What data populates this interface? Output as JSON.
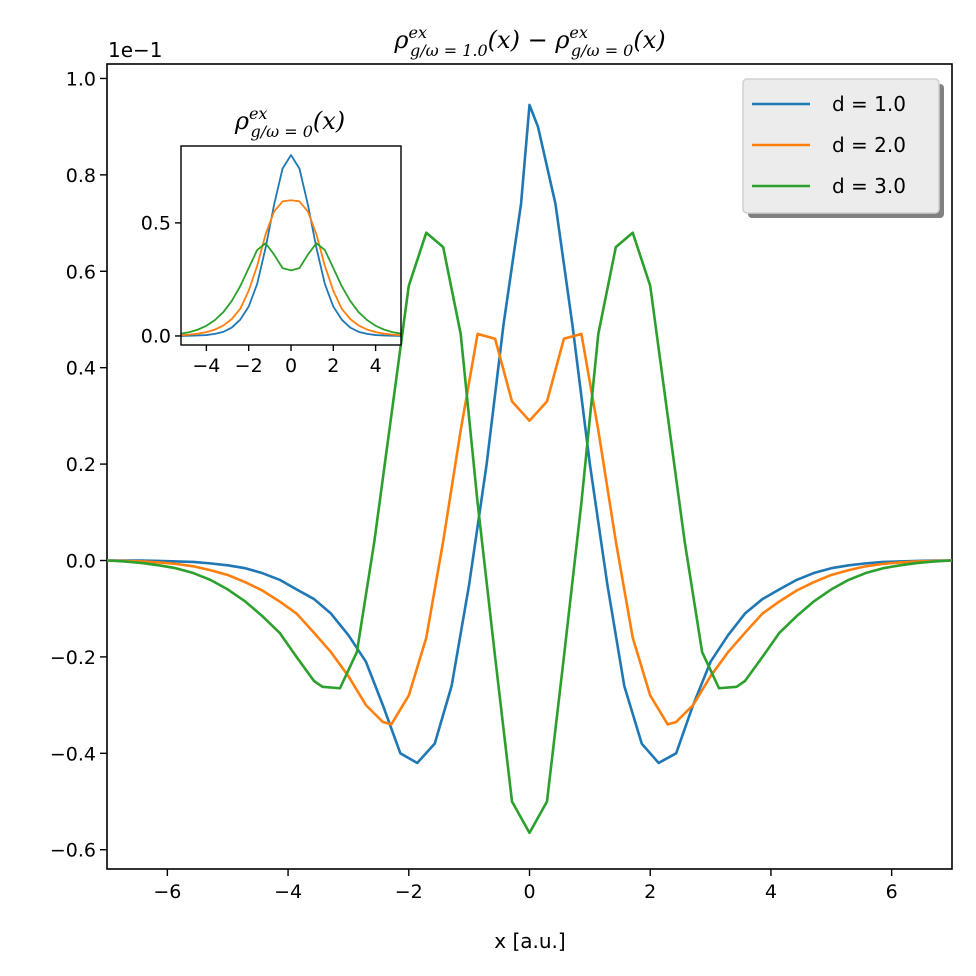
{
  "figure": {
    "title_main": "ρ",
    "title_sup": "ex",
    "title_sub_1": "g/ω = 1.0",
    "title_sub_2": "g/ω = 0",
    "title_arg": "(x)",
    "title_minus": " − ",
    "offset_text": "1e−1",
    "xlabel": "x [a.u.]",
    "inset_title_main": "ρ",
    "inset_title_sup": "ex",
    "inset_title_sub": "g/ω = 0",
    "inset_title_arg": "(x)"
  },
  "chart_data": [
    {
      "type": "line",
      "role": "main",
      "title": "ρ^ex_{g/ω=1.0}(x) − ρ^ex_{g/ω=0}(x)",
      "xlabel": "x [a.u.]",
      "ylabel": "",
      "y_scale_factor": "1e-1",
      "xlim": [
        -7,
        7
      ],
      "ylim": [
        -0.64,
        1.03
      ],
      "xticks": [
        -6,
        -4,
        -2,
        0,
        2,
        4,
        6
      ],
      "xtick_labels": [
        "−6",
        "−4",
        "−2",
        "0",
        "2",
        "4",
        "6"
      ],
      "yticks": [
        -0.6,
        -0.4,
        -0.2,
        0.0,
        0.2,
        0.4,
        0.6,
        0.8,
        1.0
      ],
      "ytick_labels": [
        "−0.6",
        "−0.4",
        "−0.2",
        "0.0",
        "0.2",
        "0.4",
        "0.6",
        "0.8",
        "1.0"
      ],
      "grid": false,
      "legend_position": "top-right",
      "series": [
        {
          "name": "d = 1.0",
          "color": "#1f77b4",
          "x": [
            -7.0,
            -6.71,
            -6.43,
            -6.14,
            -5.86,
            -5.57,
            -5.29,
            -5.0,
            -4.71,
            -4.43,
            -4.14,
            -3.86,
            -3.57,
            -3.29,
            -3.0,
            -2.71,
            -2.43,
            -2.14,
            -1.86,
            -1.57,
            -1.29,
            -1.0,
            -0.71,
            -0.43,
            -0.14,
            0.0,
            0.14,
            0.43,
            0.71,
            1.0,
            1.29,
            1.57,
            1.86,
            2.14,
            2.43,
            2.71,
            3.0,
            3.29,
            3.57,
            3.86,
            4.14,
            4.43,
            4.71,
            5.0,
            5.29,
            5.57,
            5.86,
            6.14,
            6.43,
            6.71,
            7.0
          ],
          "y": [
            0.0,
            0.0,
            0.0,
            -0.001,
            -0.002,
            -0.003,
            -0.006,
            -0.01,
            -0.016,
            -0.026,
            -0.04,
            -0.06,
            -0.08,
            -0.11,
            -0.155,
            -0.21,
            -0.3,
            -0.4,
            -0.42,
            -0.38,
            -0.26,
            -0.05,
            0.2,
            0.49,
            0.74,
            0.945,
            0.9,
            0.74,
            0.49,
            0.2,
            -0.05,
            -0.26,
            -0.38,
            -0.42,
            -0.4,
            -0.3,
            -0.21,
            -0.155,
            -0.11,
            -0.08,
            -0.06,
            -0.04,
            -0.026,
            -0.016,
            -0.01,
            -0.006,
            -0.003,
            -0.002,
            -0.001,
            0.0,
            0.0
          ]
        },
        {
          "name": "d = 2.0",
          "color": "#ff7f0e",
          "x": [
            -7.0,
            -6.71,
            -6.43,
            -6.14,
            -5.86,
            -5.57,
            -5.29,
            -5.0,
            -4.71,
            -4.43,
            -4.14,
            -3.86,
            -3.57,
            -3.29,
            -3.0,
            -2.71,
            -2.43,
            -2.29,
            -2.0,
            -1.71,
            -1.43,
            -1.14,
            -0.86,
            -0.57,
            -0.29,
            0.0,
            0.29,
            0.57,
            0.86,
            1.14,
            1.43,
            1.71,
            2.0,
            2.29,
            2.43,
            2.71,
            3.0,
            3.29,
            3.57,
            3.86,
            4.14,
            4.43,
            4.71,
            5.0,
            5.29,
            5.57,
            5.86,
            6.14,
            6.43,
            6.71,
            7.0
          ],
          "y": [
            0.0,
            -0.001,
            -0.002,
            -0.004,
            -0.007,
            -0.012,
            -0.02,
            -0.03,
            -0.045,
            -0.062,
            -0.085,
            -0.11,
            -0.15,
            -0.19,
            -0.24,
            -0.3,
            -0.335,
            -0.34,
            -0.28,
            -0.16,
            0.04,
            0.27,
            0.47,
            0.46,
            0.33,
            0.29,
            0.33,
            0.46,
            0.47,
            0.27,
            0.04,
            -0.16,
            -0.28,
            -0.34,
            -0.335,
            -0.3,
            -0.24,
            -0.19,
            -0.15,
            -0.11,
            -0.085,
            -0.062,
            -0.045,
            -0.03,
            -0.02,
            -0.012,
            -0.007,
            -0.004,
            -0.002,
            -0.001,
            0.0
          ]
        },
        {
          "name": "d = 3.0",
          "color": "#2ca02c",
          "x": [
            -7.0,
            -6.71,
            -6.43,
            -6.14,
            -5.86,
            -5.57,
            -5.29,
            -5.0,
            -4.71,
            -4.43,
            -4.14,
            -3.86,
            -3.57,
            -3.43,
            -3.14,
            -2.86,
            -2.57,
            -2.29,
            -2.0,
            -1.71,
            -1.43,
            -1.14,
            -0.86,
            -0.57,
            -0.29,
            0.0,
            0.29,
            0.57,
            0.86,
            1.14,
            1.43,
            1.71,
            2.0,
            2.29,
            2.57,
            2.86,
            3.14,
            3.43,
            3.57,
            3.86,
            4.14,
            4.43,
            4.71,
            5.0,
            5.29,
            5.57,
            5.86,
            6.14,
            6.43,
            6.71,
            7.0
          ],
          "y": [
            0.0,
            -0.002,
            -0.005,
            -0.01,
            -0.016,
            -0.026,
            -0.04,
            -0.06,
            -0.085,
            -0.115,
            -0.15,
            -0.2,
            -0.25,
            -0.262,
            -0.265,
            -0.19,
            0.04,
            0.3,
            0.57,
            0.68,
            0.65,
            0.47,
            0.12,
            -0.2,
            -0.5,
            -0.565,
            -0.5,
            -0.2,
            0.12,
            0.47,
            0.65,
            0.68,
            0.57,
            0.3,
            0.04,
            -0.19,
            -0.265,
            -0.262,
            -0.25,
            -0.2,
            -0.15,
            -0.115,
            -0.085,
            -0.06,
            -0.04,
            -0.026,
            -0.016,
            -0.01,
            -0.005,
            -0.002,
            0.0
          ]
        }
      ]
    },
    {
      "type": "line",
      "role": "inset",
      "title": "ρ^ex_{g/ω=0}(x)",
      "xlim": [
        -5.2,
        5.2
      ],
      "ylim": [
        -0.04,
        0.84
      ],
      "xticks": [
        -4,
        -2,
        0,
        2,
        4
      ],
      "xtick_labels": [
        "−4",
        "−2",
        "0",
        "2",
        "4"
      ],
      "yticks": [
        0.0,
        0.5
      ],
      "ytick_labels": [
        "0.0",
        "0.5"
      ],
      "series": [
        {
          "name": "d = 1.0",
          "color": "#1f77b4",
          "x": [
            -5.2,
            -4.8,
            -4.4,
            -4.0,
            -3.6,
            -3.2,
            -2.8,
            -2.4,
            -2.0,
            -1.6,
            -1.2,
            -0.8,
            -0.4,
            0.0,
            0.4,
            0.8,
            1.2,
            1.6,
            2.0,
            2.4,
            2.8,
            3.2,
            3.6,
            4.0,
            4.4,
            4.8,
            5.2
          ],
          "y": [
            0.0,
            0.001,
            0.002,
            0.004,
            0.009,
            0.018,
            0.037,
            0.072,
            0.13,
            0.23,
            0.39,
            0.58,
            0.74,
            0.8,
            0.74,
            0.58,
            0.39,
            0.23,
            0.13,
            0.072,
            0.037,
            0.018,
            0.009,
            0.004,
            0.002,
            0.001,
            0.0
          ]
        },
        {
          "name": "d = 2.0",
          "color": "#ff7f0e",
          "x": [
            -5.2,
            -4.8,
            -4.4,
            -4.0,
            -3.6,
            -3.2,
            -2.8,
            -2.4,
            -2.0,
            -1.6,
            -1.2,
            -0.8,
            -0.4,
            0.0,
            0.4,
            0.8,
            1.2,
            1.6,
            2.0,
            2.4,
            2.8,
            3.2,
            3.6,
            4.0,
            4.4,
            4.8,
            5.2
          ],
          "y": [
            0.003,
            0.006,
            0.01,
            0.017,
            0.028,
            0.046,
            0.075,
            0.12,
            0.2,
            0.31,
            0.45,
            0.55,
            0.595,
            0.6,
            0.595,
            0.55,
            0.45,
            0.31,
            0.2,
            0.12,
            0.075,
            0.046,
            0.028,
            0.017,
            0.01,
            0.006,
            0.003
          ]
        },
        {
          "name": "d = 3.0",
          "color": "#2ca02c",
          "x": [
            -5.2,
            -4.8,
            -4.4,
            -4.0,
            -3.6,
            -3.2,
            -2.8,
            -2.4,
            -2.0,
            -1.6,
            -1.2,
            -0.8,
            -0.4,
            0.0,
            0.4,
            0.8,
            1.2,
            1.6,
            2.0,
            2.4,
            2.8,
            3.2,
            3.6,
            4.0,
            4.4,
            4.8,
            5.2
          ],
          "y": [
            0.01,
            0.017,
            0.028,
            0.045,
            0.07,
            0.105,
            0.155,
            0.22,
            0.3,
            0.38,
            0.41,
            0.36,
            0.3,
            0.29,
            0.3,
            0.36,
            0.41,
            0.38,
            0.3,
            0.22,
            0.155,
            0.105,
            0.07,
            0.045,
            0.028,
            0.017,
            0.01
          ]
        }
      ]
    }
  ]
}
